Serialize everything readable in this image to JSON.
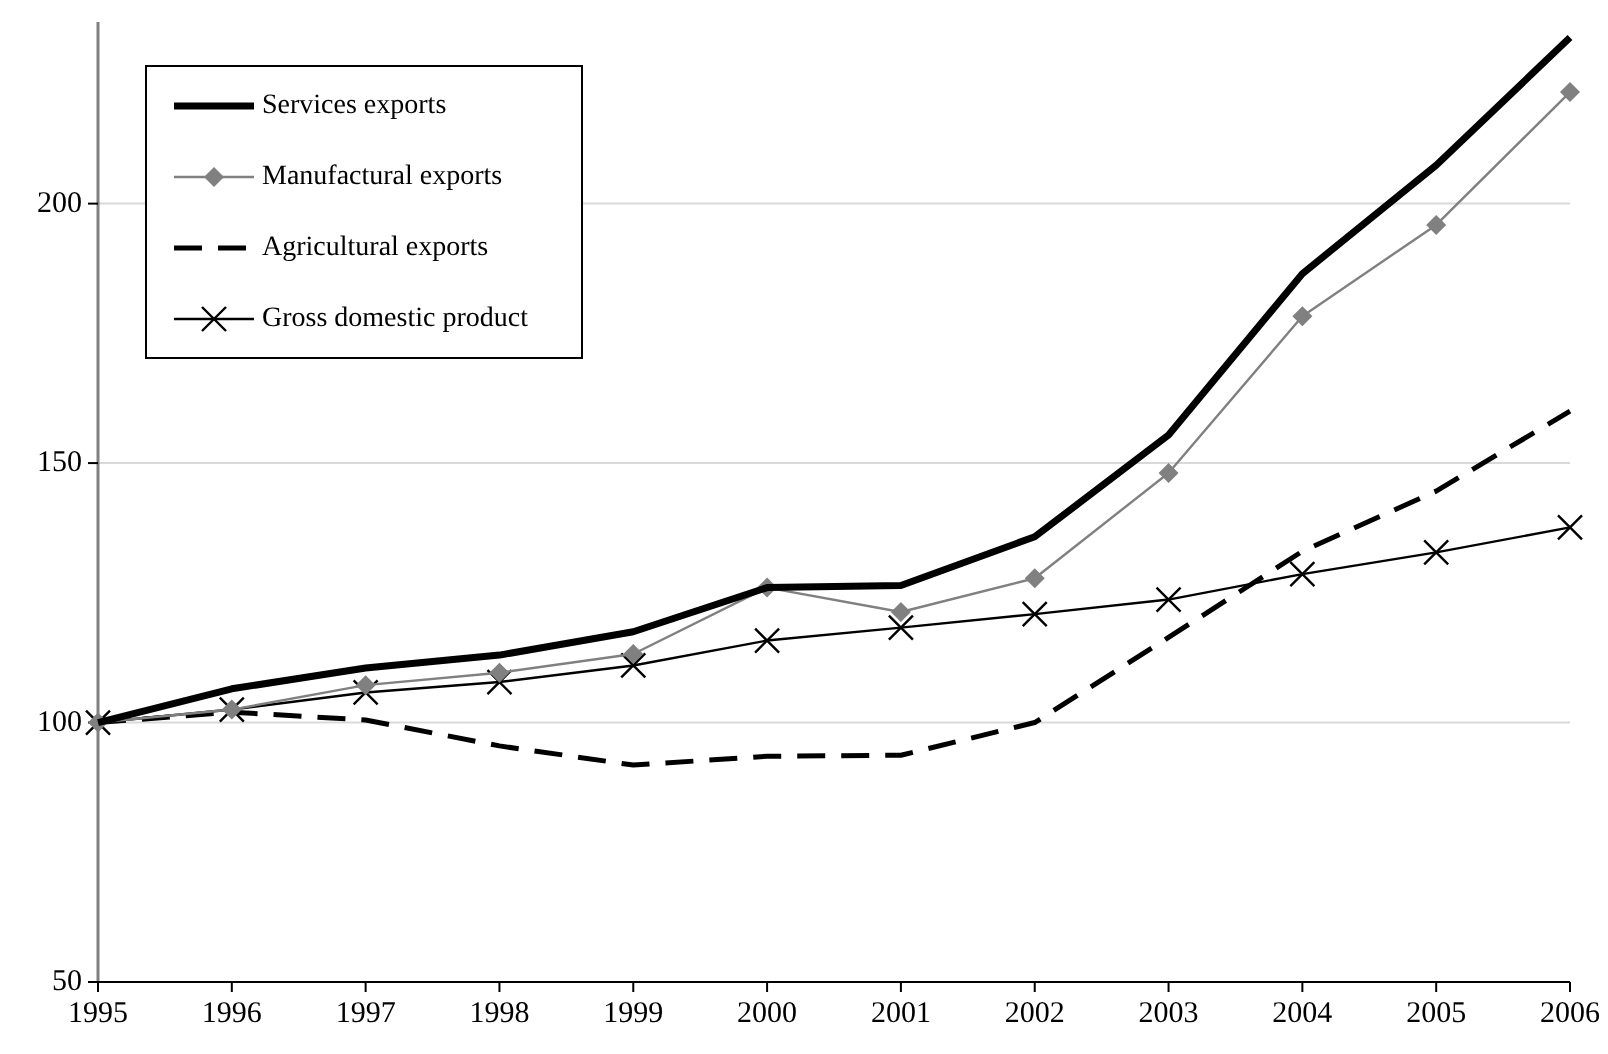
{
  "chart_data": {
    "type": "line",
    "categories": [
      "1995",
      "1996",
      "1997",
      "1998",
      "1999",
      "2000",
      "2001",
      "2002",
      "2003",
      "2004",
      "2005",
      "2006"
    ],
    "series": [
      {
        "name": "Services exports",
        "color": "#000000",
        "marker": "none",
        "line_style": "solid",
        "values": [
          100,
          106.5,
          110.5,
          113,
          117.5,
          126,
          126.4,
          135.8,
          155.4,
          186.5,
          207.4,
          232
        ]
      },
      {
        "name": "Manufactural exports",
        "color": "#808080",
        "marker": "diamond",
        "line_style": "solid",
        "values": [
          100,
          102.5,
          107.2,
          109.6,
          113.2,
          126,
          121.3,
          127.8,
          148.1,
          178.3,
          195.9,
          221.5
        ]
      },
      {
        "name": "Agricultural exports",
        "color": "#000000",
        "marker": "none",
        "line_style": "dashed",
        "values": [
          100,
          102,
          100.5,
          95.5,
          91.8,
          93.5,
          93.7,
          100,
          116.4,
          133,
          144.6,
          160
        ]
      },
      {
        "name": "Gross domestic product",
        "color": "#000000",
        "marker": "cross",
        "line_style": "solid",
        "values": [
          100,
          102.5,
          105.8,
          107.8,
          111,
          115.8,
          118.3,
          120.9,
          123.7,
          128.6,
          132.8,
          137.6
        ]
      }
    ],
    "ylim": [
      50,
      235
    ],
    "yticks": [
      50,
      100,
      150,
      200
    ],
    "grid": "y",
    "legend": "top left"
  }
}
